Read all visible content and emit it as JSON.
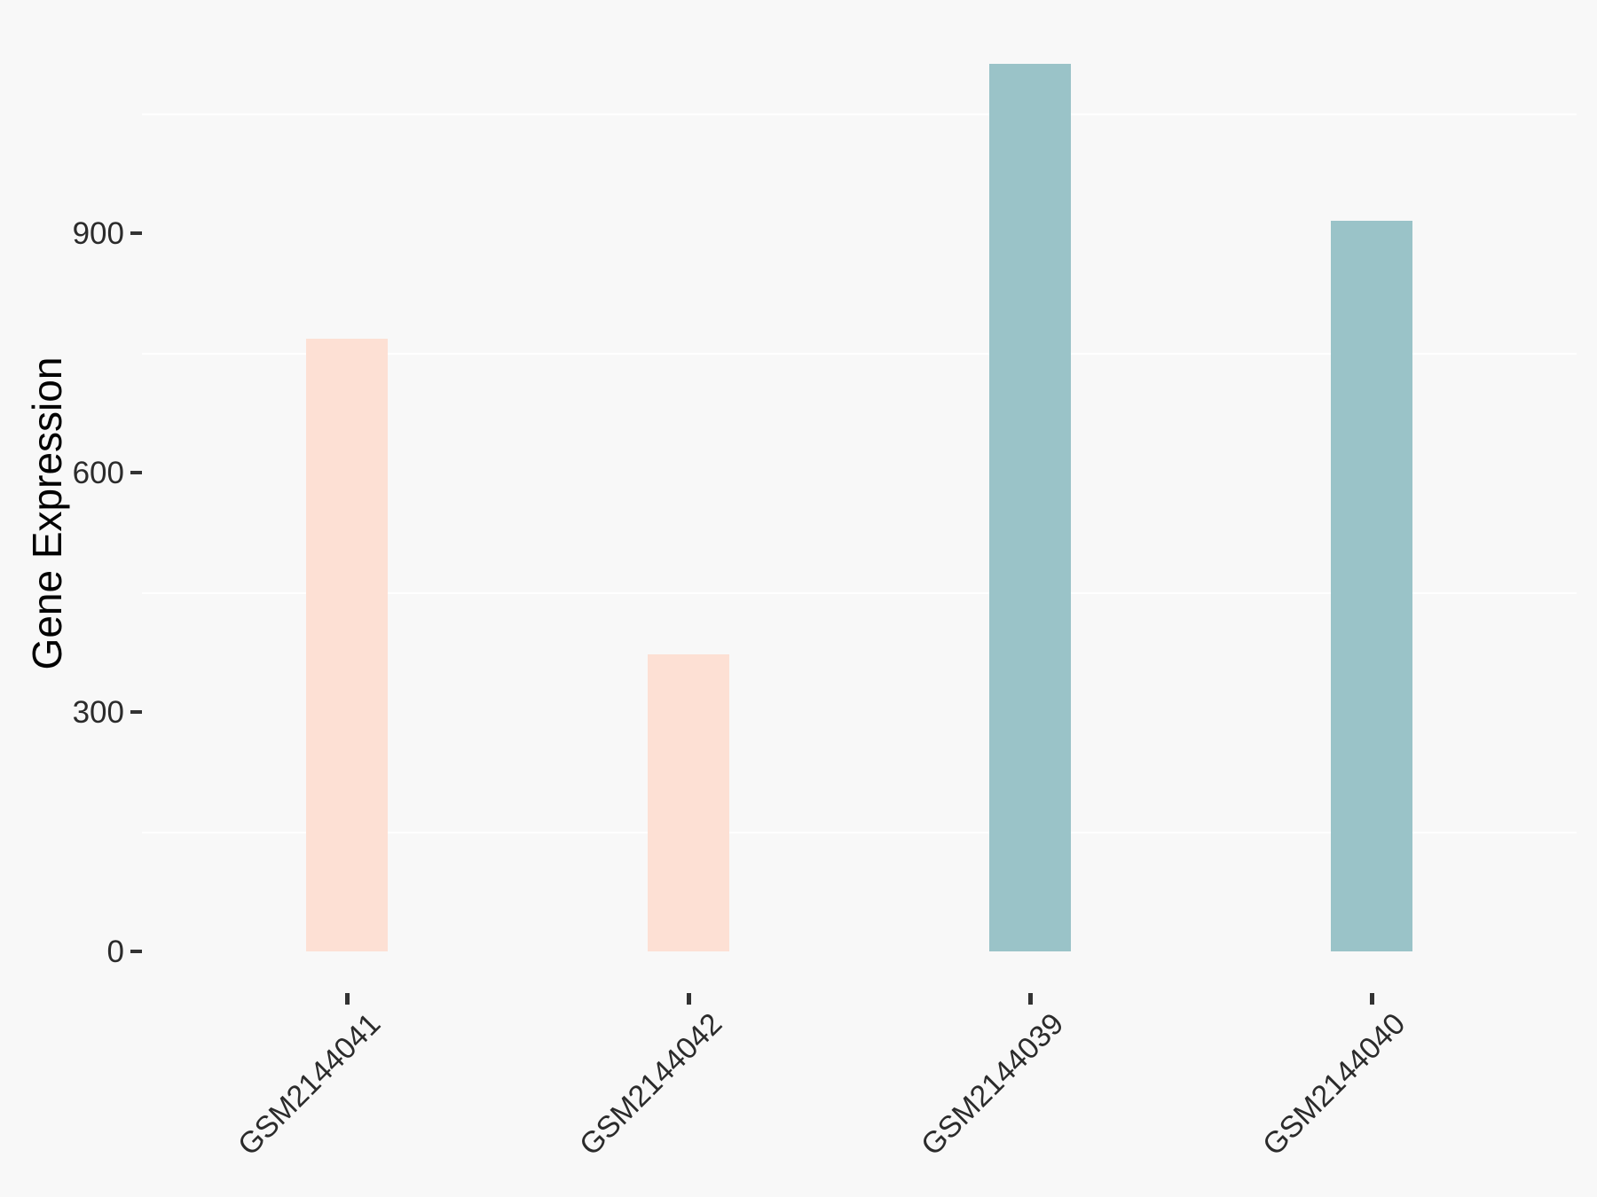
{
  "colors": {
    "background": "#F8F8F8",
    "gridline": "#FFFFFF",
    "tick_mark": "#333333",
    "tick_label_text": "#2B2B2B",
    "axis_title_text": "#000000",
    "bar_pink": "#FDE0D4",
    "bar_teal": "#9AC3C8"
  },
  "chart_data": {
    "type": "bar",
    "title": "",
    "xlabel": "",
    "ylabel": "Gene Expression",
    "categories": [
      "GSM2144041",
      "GSM2144042",
      "GSM2144039",
      "GSM2144040"
    ],
    "values": [
      768,
      372,
      1112,
      916
    ],
    "bar_colors": [
      "#FDE0D4",
      "#FDE0D4",
      "#9AC3C8",
      "#9AC3C8"
    ],
    "yticks": [
      {
        "value": 0,
        "label": "0"
      },
      {
        "value": 300,
        "label": "300"
      },
      {
        "value": 600,
        "label": "600"
      },
      {
        "value": 900,
        "label": "900"
      }
    ],
    "minor_gridlines": [
      150,
      450,
      750,
      1050
    ],
    "ylim": [
      -56,
      1168
    ],
    "grid": "horizontal white minor gridlines on light gray panel",
    "legend": "none"
  }
}
